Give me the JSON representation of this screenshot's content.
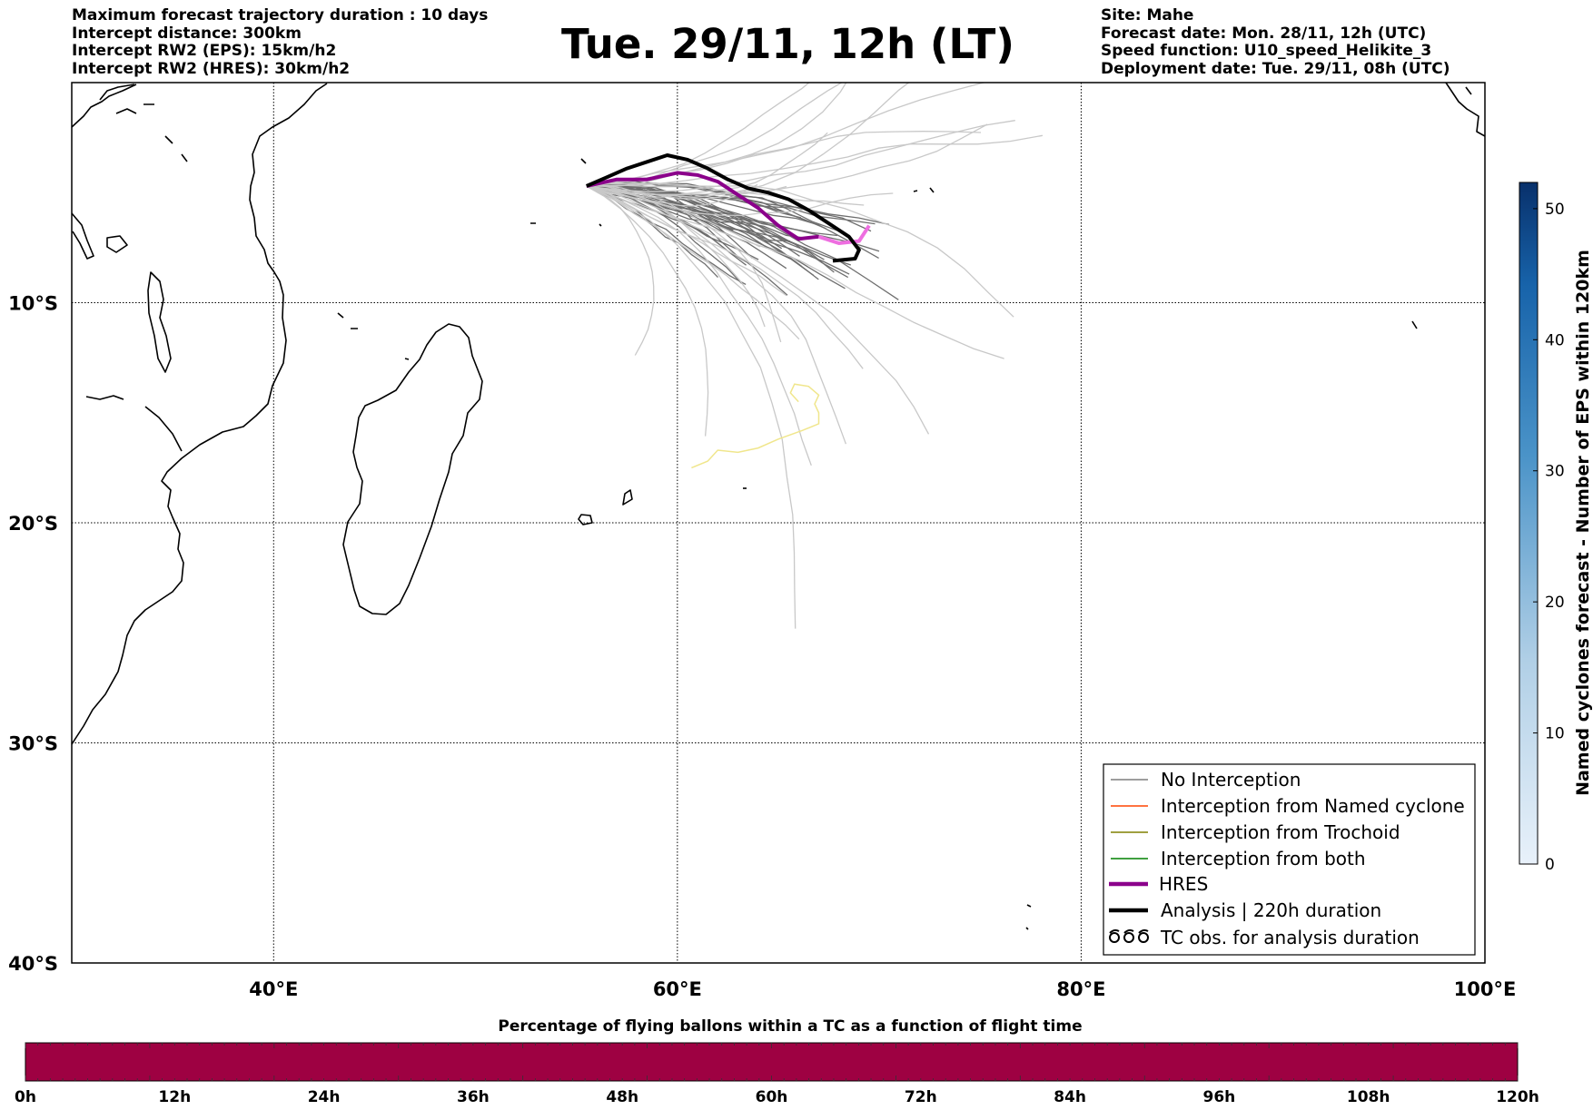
{
  "header_left": [
    "Maximum forecast trajectory duration : 10 days",
    "Intercept distance: 300km",
    "Intercept RW2 (EPS):  15km/h2",
    "Intercept RW2 (HRES): 30km/h2"
  ],
  "title": "Tue. 29/11, 12h (LT)",
  "header_right": [
    "Site: Mahe",
    "Forecast date: Mon. 28/11, 12h (UTC)",
    "Speed function: U10_speed_Helikite_3",
    "Deployment date: Tue. 29/11, 08h (UTC)"
  ],
  "map": {
    "lon_range": [
      30,
      100
    ],
    "lat_range": [
      -40,
      0
    ],
    "lon_ticks": [
      {
        "value": 40,
        "label": "40°E"
      },
      {
        "value": 60,
        "label": "60°E"
      },
      {
        "value": 80,
        "label": "80°E"
      },
      {
        "value": 100,
        "label": "100°E"
      }
    ],
    "lat_ticks": [
      {
        "value": -10,
        "label": "10°S"
      },
      {
        "value": -20,
        "label": "20°S"
      },
      {
        "value": -30,
        "label": "30°S"
      },
      {
        "value": -40,
        "label": "40°S"
      }
    ],
    "gridlines": "dotted",
    "coastline_color": "#000000"
  },
  "legend": {
    "placement": "bottom-right",
    "items": [
      {
        "label": "No Interception",
        "color": "#7f7f7f",
        "style": "thin-line"
      },
      {
        "label": "Interception from Named cyclone",
        "color": "#ff4500",
        "style": "thin-line"
      },
      {
        "label": "Interception from Trochoid",
        "color": "#808000",
        "style": "thin-line"
      },
      {
        "label": "Interception from both",
        "color": "#008000",
        "style": "thin-line"
      },
      {
        "label": "HRES",
        "color": "#8b008b",
        "style": "thick-line"
      },
      {
        "label": "Analysis | 220h duration",
        "color": "#000000",
        "style": "thick-line"
      },
      {
        "label": "TC obs. for analysis duration",
        "color": "#000000",
        "style": "cyclone-symbols"
      }
    ]
  },
  "colorbar_right": {
    "label": "Named cyclones forecast - Number of EPS within 120km",
    "ticks": [
      "0",
      "10",
      "20",
      "30",
      "40",
      "50"
    ],
    "range": [
      0,
      52
    ],
    "color_low": "#e8f1fa",
    "color_high": "#08306b"
  },
  "colorbar_bottom": {
    "title": "Percentage of flying ballons within a TC as a function of flight time",
    "ticks": [
      "0h",
      "12h",
      "24h",
      "36h",
      "48h",
      "60h",
      "72h",
      "84h",
      "96h",
      "108h",
      "120h"
    ],
    "fill_color": "#9e0142"
  },
  "trajectories": {
    "launch_site": {
      "lon": 55.5,
      "lat": -4.7
    },
    "analysis": [
      [
        55.5,
        -4.7
      ],
      [
        56.5,
        -4.3
      ],
      [
        57.5,
        -3.9
      ],
      [
        58.5,
        -3.6
      ],
      [
        59.5,
        -3.3
      ],
      [
        60.5,
        -3.5
      ],
      [
        61.5,
        -3.9
      ],
      [
        62.5,
        -4.4
      ],
      [
        63.5,
        -4.8
      ],
      [
        64.5,
        -5.0
      ],
      [
        65.5,
        -5.3
      ],
      [
        66.5,
        -5.8
      ],
      [
        67.5,
        -6.4
      ],
      [
        68.5,
        -7.0
      ],
      [
        69.0,
        -7.6
      ],
      [
        68.8,
        -8.0
      ],
      [
        67.7,
        -8.1
      ]
    ],
    "hres": [
      [
        55.5,
        -4.7
      ],
      [
        57,
        -4.4
      ],
      [
        58.5,
        -4.4
      ],
      [
        60,
        -4.1
      ],
      [
        61,
        -4.2
      ],
      [
        62,
        -4.5
      ],
      [
        63,
        -5.1
      ],
      [
        64,
        -5.7
      ],
      [
        65,
        -6.5
      ],
      [
        66,
        -7.1
      ],
      [
        67,
        -7.0
      ],
      [
        68,
        -7.3
      ],
      [
        69,
        -7.2
      ],
      [
        69.5,
        -6.5
      ]
    ],
    "eps_colors": {
      "dark": "#6e6e6e",
      "light": "#c8c8c8"
    },
    "yellow_track_color": "#f0e68c"
  }
}
